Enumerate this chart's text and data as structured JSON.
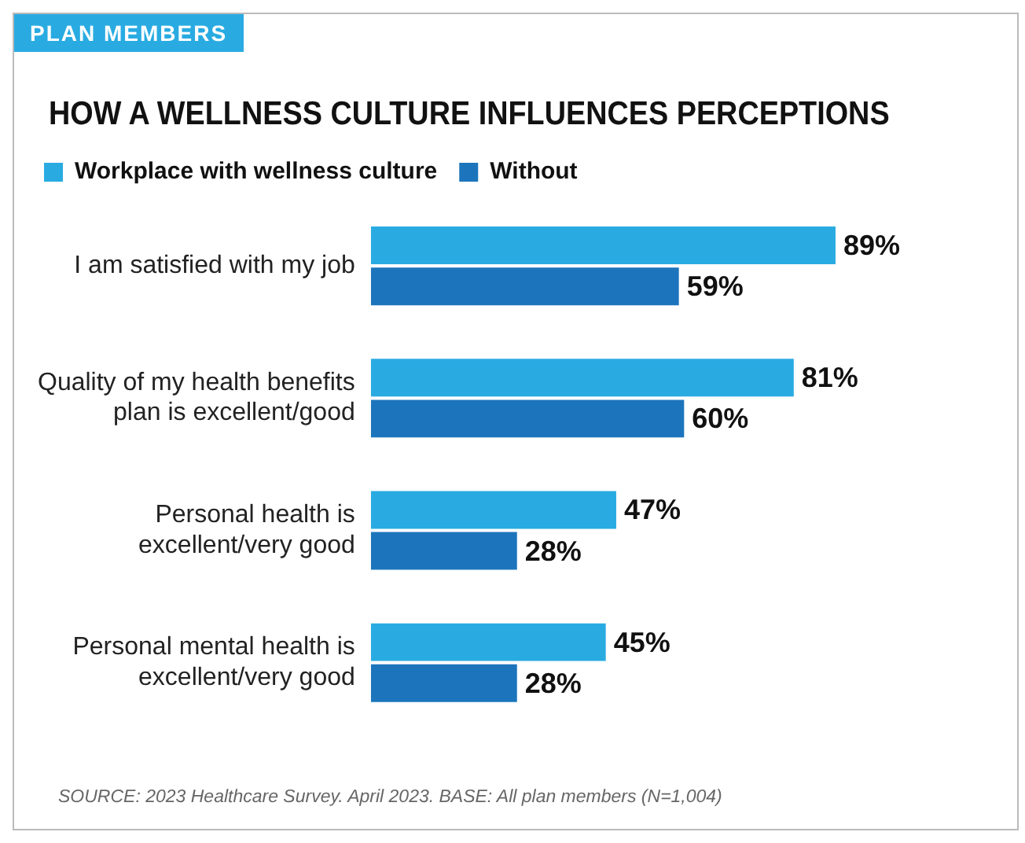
{
  "chart_data": {
    "type": "bar",
    "orientation": "horizontal",
    "subtitle": "PLAN MEMBERS",
    "title": "HOW A WELLNESS CULTURE INFLUENCES PERCEPTIONS",
    "categories": [
      "I am satisfied with my job",
      "Quality of my health benefits plan is excellent/good",
      "Personal health is excellent/very good",
      "Personal mental health is excellent/very good"
    ],
    "series": [
      {
        "name": "Workplace with wellness culture",
        "color": "#29abe2",
        "values": [
          89,
          81,
          47,
          45
        ],
        "value_labels": [
          "89%",
          "81%",
          "47%",
          "45%"
        ]
      },
      {
        "name": "Without",
        "color": "#1c75bc",
        "values": [
          59,
          60,
          28,
          28
        ],
        "value_labels": [
          "59%",
          "60%",
          "28%",
          "28%"
        ]
      }
    ],
    "tick_labels": false,
    "grid": false,
    "legend": "top left",
    "annotations": [
      "SOURCE: 2023 Healthcare Survey. April 2023. BASE: All plan members (N=1,004)"
    ]
  }
}
